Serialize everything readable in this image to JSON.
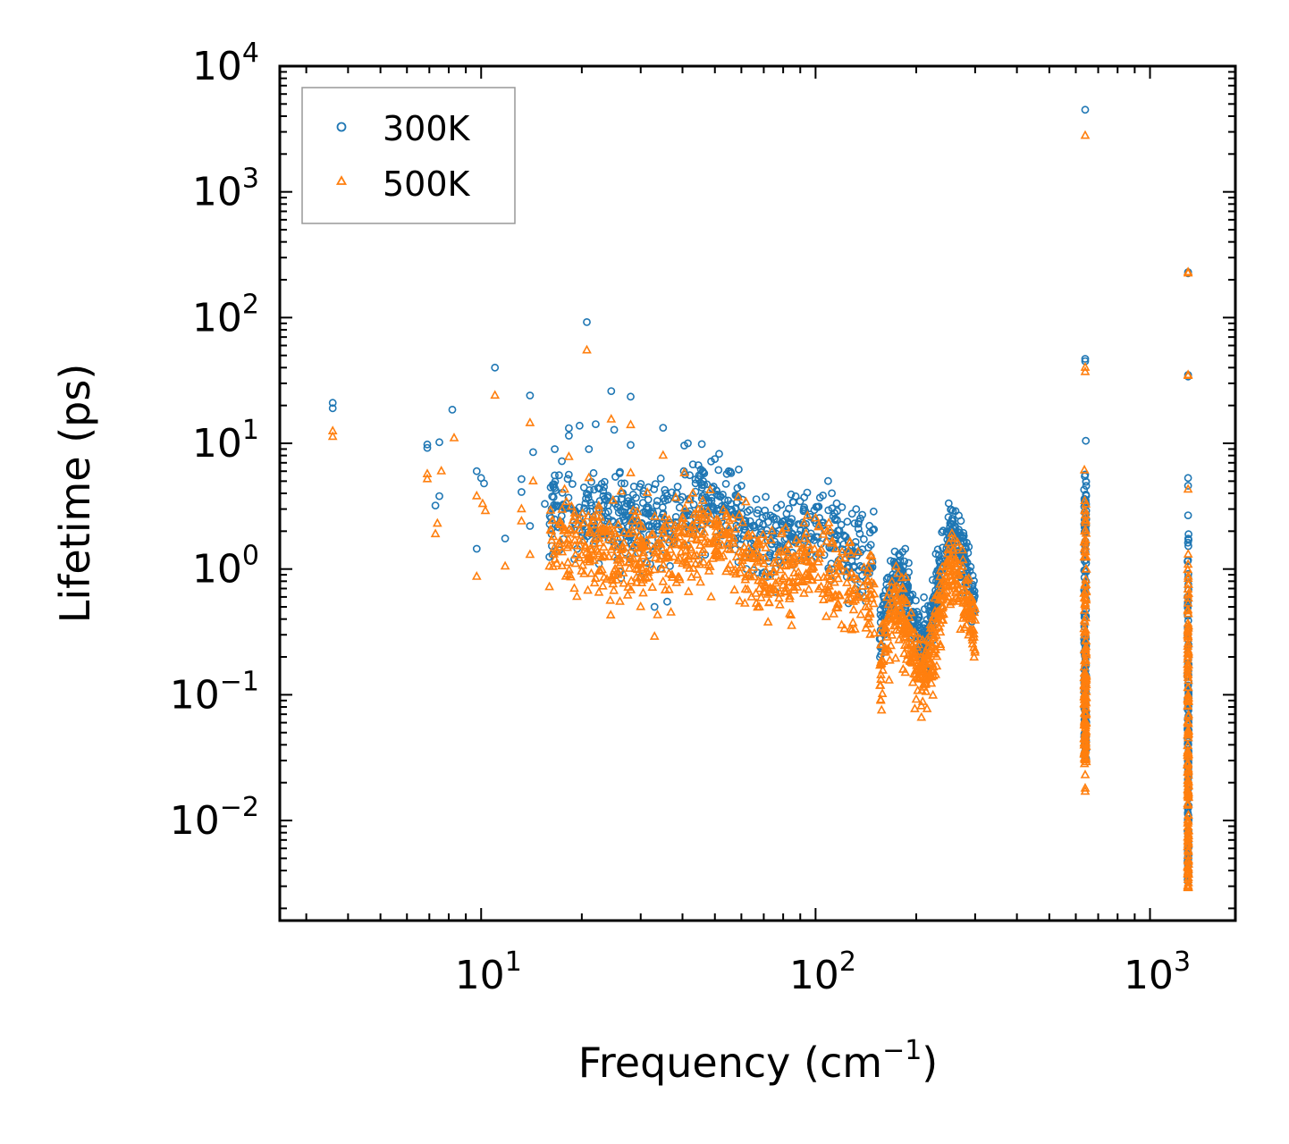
{
  "chart_data": {
    "type": "scatter",
    "xscale": "log",
    "yscale": "log",
    "xlabel": "Frequency (cm",
    "xlabel_sup": "−1",
    "xlabel_end": ")",
    "ylabel": "Lifetime (ps)",
    "xlim": [
      2.5,
      1800
    ],
    "ylim": [
      0.0016,
      10000
    ],
    "xticks": [
      {
        "base": "10",
        "exp": "1",
        "value": 10
      },
      {
        "base": "10",
        "exp": "2",
        "value": 100
      },
      {
        "base": "10",
        "exp": "3",
        "value": 1000
      }
    ],
    "yticks": [
      {
        "base": "10",
        "exp": "−2",
        "value": 0.01
      },
      {
        "base": "10",
        "exp": "−1",
        "value": 0.1
      },
      {
        "base": "10",
        "exp": "0",
        "value": 1
      },
      {
        "base": "10",
        "exp": "1",
        "value": 10
      },
      {
        "base": "10",
        "exp": "2",
        "value": 100
      },
      {
        "base": "10",
        "exp": "3",
        "value": 1000
      },
      {
        "base": "10",
        "exp": "4",
        "value": 10000
      }
    ],
    "legend_position": "top-left",
    "series": [
      {
        "name": "300K",
        "marker": "circle",
        "color": "#1f77b4",
        "points": [
          [
            3.6,
            21
          ],
          [
            3.6,
            19
          ],
          [
            6.9,
            9.8
          ],
          [
            6.9,
            9.2
          ],
          [
            7.5,
            10.2
          ],
          [
            8.2,
            18.5
          ],
          [
            7.3,
            3.2
          ],
          [
            7.5,
            3.8
          ],
          [
            9.7,
            6.0
          ],
          [
            10.0,
            5.3
          ],
          [
            10.2,
            4.8
          ],
          [
            9.7,
            1.45
          ],
          [
            11.0,
            40
          ],
          [
            11.8,
            1.75
          ],
          [
            13.2,
            5.2
          ],
          [
            13.2,
            4.1
          ],
          [
            14.0,
            24
          ],
          [
            14.3,
            8.5
          ],
          [
            14.0,
            2.2
          ],
          [
            15.5,
            3.3
          ],
          [
            16.0,
            1.25
          ],
          [
            16.6,
            4.4
          ],
          [
            16.6,
            9.0
          ],
          [
            18.3,
            13.2
          ],
          [
            18.3,
            11.5
          ],
          [
            19.7,
            13.8
          ],
          [
            20.7,
            92
          ],
          [
            21.0,
            9.0
          ],
          [
            22.0,
            14.2
          ],
          [
            23.3,
            4.5
          ],
          [
            24.5,
            26
          ],
          [
            25.0,
            12.8
          ],
          [
            28.0,
            23.5
          ],
          [
            28.0,
            9.7
          ],
          [
            35.0,
            13.3
          ],
          [
            40.5,
            9.6
          ],
          [
            41.5,
            10.0
          ],
          [
            43.0,
            6.8
          ],
          [
            46.0,
            6.0
          ],
          [
            50.0,
            7.5
          ],
          [
            55.0,
            6.0
          ],
          [
            60.0,
            4.6
          ],
          [
            19.0,
            1.2
          ],
          [
            22.5,
            1.1
          ],
          [
            26.0,
            0.95
          ],
          [
            30.0,
            0.87
          ],
          [
            33.0,
            0.5
          ],
          [
            36.0,
            0.55
          ],
          [
            640,
            4500
          ],
          [
            640,
            47
          ],
          [
            640,
            45
          ],
          [
            1300,
            230
          ],
          [
            1300,
            225
          ],
          [
            1300,
            35
          ],
          [
            1300,
            34
          ],
          [
            1300,
            5.3
          ],
          [
            1300,
            4.6
          ],
          [
            1300,
            0.19
          ],
          [
            1300,
            0.11
          ],
          [
            1300,
            0.085
          ],
          [
            1300,
            0.065
          ],
          [
            1300,
            0.031
          ],
          [
            1300,
            0.027
          ],
          [
            1300,
            0.019
          ]
        ],
        "bands": [
          {
            "x": [
              16,
              150
            ],
            "center": [
              3.0,
              1.2
            ],
            "spread": 0.35,
            "count": 700,
            "hump": [
              1.5,
              0.25,
              100,
              0.2
            ]
          },
          {
            "x": [
              155,
              300
            ],
            "center": [
              0.5,
              1.6
            ],
            "spread": 0.25,
            "count": 420,
            "osc": true
          },
          {
            "x": [
              635,
              645
            ],
            "vertical": true,
            "y": [
              0.03,
              11
            ],
            "count": 160
          },
          {
            "x": [
              1295,
              1305
            ],
            "vertical": true,
            "y": [
              0.0032,
              3.0
            ],
            "count": 160
          }
        ]
      },
      {
        "name": "500K",
        "marker": "triangle",
        "color": "#ff7f0e",
        "points": [
          [
            3.6,
            12.5
          ],
          [
            3.6,
            11.3
          ],
          [
            6.9,
            5.7
          ],
          [
            6.9,
            5.2
          ],
          [
            7.4,
            2.3
          ],
          [
            7.3,
            1.9
          ],
          [
            7.6,
            6.0
          ],
          [
            8.3,
            11.0
          ],
          [
            9.7,
            3.8
          ],
          [
            10.1,
            3.3
          ],
          [
            10.3,
            2.9
          ],
          [
            9.7,
            0.87
          ],
          [
            11.0,
            24
          ],
          [
            11.8,
            1.05
          ],
          [
            13.2,
            3.0
          ],
          [
            13.2,
            2.4
          ],
          [
            14.0,
            14.5
          ],
          [
            14.3,
            5.0
          ],
          [
            14.0,
            1.3
          ],
          [
            16.0,
            0.72
          ],
          [
            18.3,
            7.8
          ],
          [
            20.7,
            55
          ],
          [
            21.0,
            5.3
          ],
          [
            24.5,
            15.5
          ],
          [
            28.0,
            14.0
          ],
          [
            28.0,
            5.8
          ],
          [
            35.0,
            8.0
          ],
          [
            40.5,
            5.8
          ],
          [
            43.0,
            4.0
          ],
          [
            46.0,
            3.5
          ],
          [
            19.0,
            0.7
          ],
          [
            22.5,
            0.65
          ],
          [
            26.0,
            0.55
          ],
          [
            30.0,
            0.5
          ],
          [
            33.0,
            0.29
          ],
          [
            640,
            2800
          ],
          [
            640,
            40
          ],
          [
            640,
            37
          ],
          [
            640,
            0.023
          ],
          [
            640,
            0.018
          ],
          [
            640,
            0.017
          ],
          [
            1300,
            230
          ],
          [
            1300,
            225
          ],
          [
            1300,
            35
          ],
          [
            1300,
            34.5
          ],
          [
            1300,
            4.3
          ],
          [
            1300,
            0.165
          ],
          [
            1300,
            0.06
          ],
          [
            1300,
            0.05
          ],
          [
            1300,
            0.024
          ]
        ],
        "bands": [
          {
            "x": [
              16,
              150
            ],
            "center": [
              1.7,
              0.6
            ],
            "spread": 0.35,
            "count": 700,
            "hump": [
              1.3,
              0.22,
              100,
              0.18
            ]
          },
          {
            "x": [
              155,
              300
            ],
            "center": [
              0.25,
              0.9
            ],
            "spread": 0.3,
            "count": 420,
            "osc": true
          },
          {
            "x": [
              635,
              645
            ],
            "vertical": true,
            "y": [
              0.028,
              7.5
            ],
            "count": 160
          },
          {
            "x": [
              1295,
              1305
            ],
            "vertical": true,
            "y": [
              0.0029,
              2.5
            ],
            "count": 160
          }
        ]
      }
    ]
  }
}
